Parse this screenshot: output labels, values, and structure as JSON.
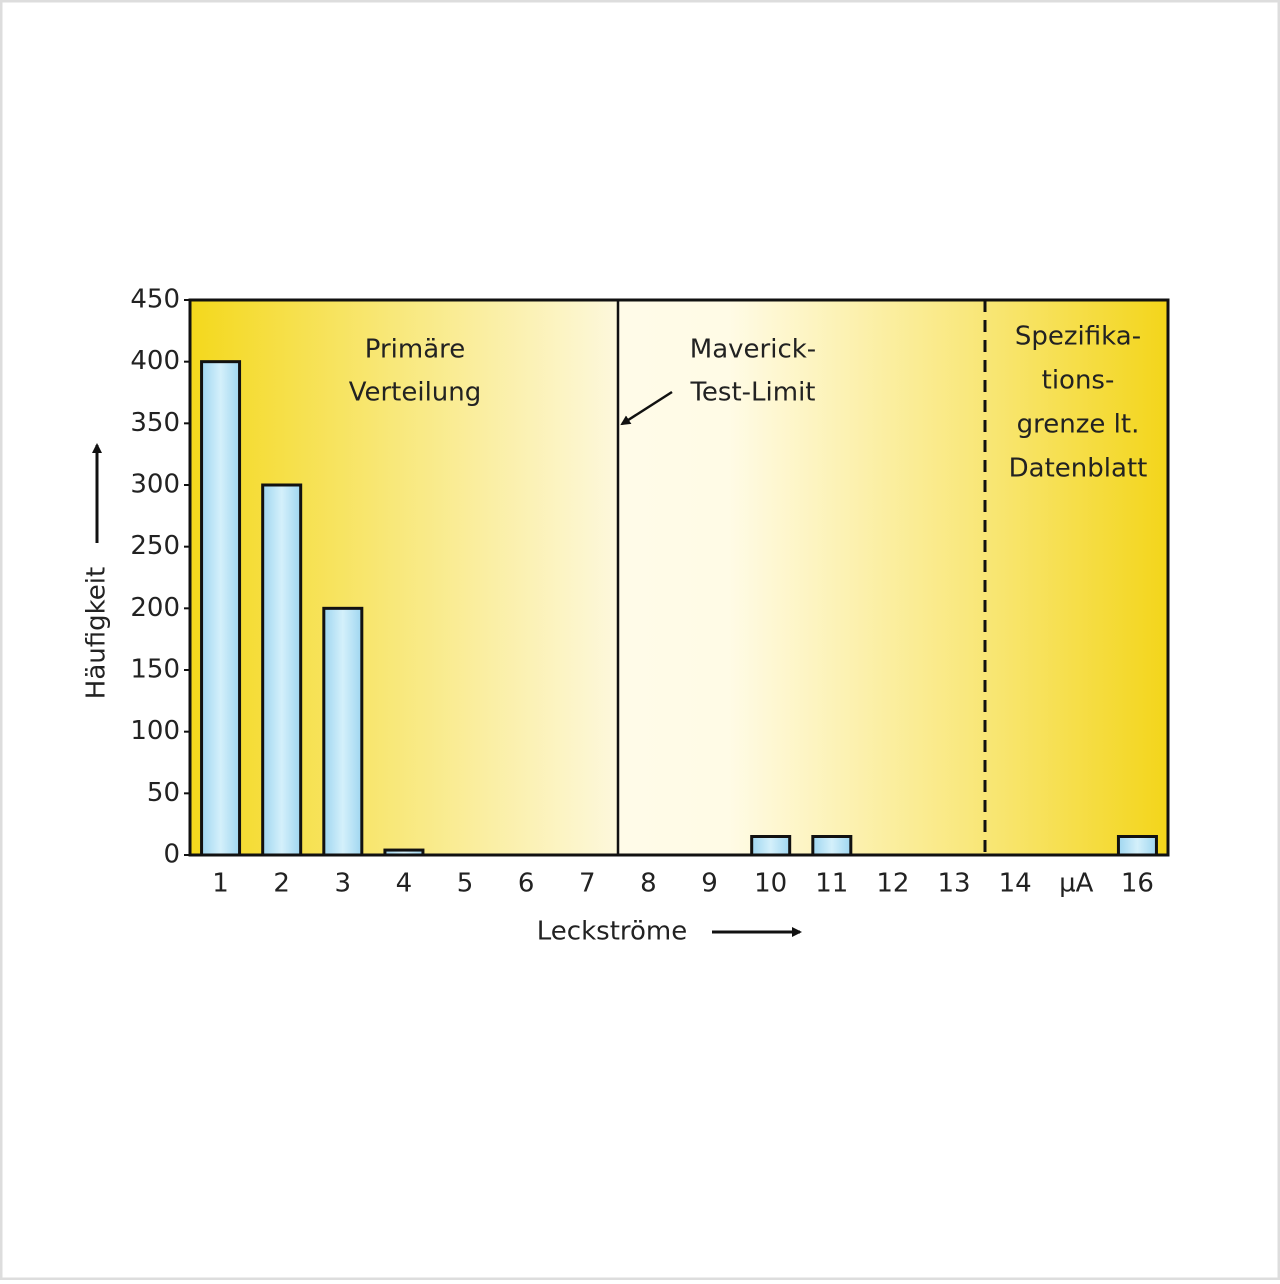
{
  "chart_data": {
    "type": "bar",
    "categories": [
      "1",
      "2",
      "3",
      "4",
      "5",
      "6",
      "7",
      "8",
      "9",
      "10",
      "11",
      "12",
      "13",
      "14",
      "µA",
      "16"
    ],
    "values": [
      400,
      300,
      200,
      4,
      0,
      0,
      0,
      0,
      0,
      15,
      15,
      0,
      0,
      0,
      0,
      15
    ],
    "color": "#bfe6f7",
    "ylim": [
      0,
      450
    ],
    "yticks": [
      0,
      50,
      100,
      150,
      200,
      250,
      300,
      350,
      400,
      450
    ],
    "y_label": "Häufigkeit",
    "x_label": "Leckströme",
    "annotations": [
      {
        "lines": [
          "Primäre",
          "Verteilung"
        ]
      },
      {
        "lines": [
          "Maverick-",
          "Test-Limit"
        ]
      },
      {
        "lines": [
          "Spezifika-",
          "tions-",
          "grenze lt.",
          "Datenblatt"
        ]
      }
    ]
  }
}
